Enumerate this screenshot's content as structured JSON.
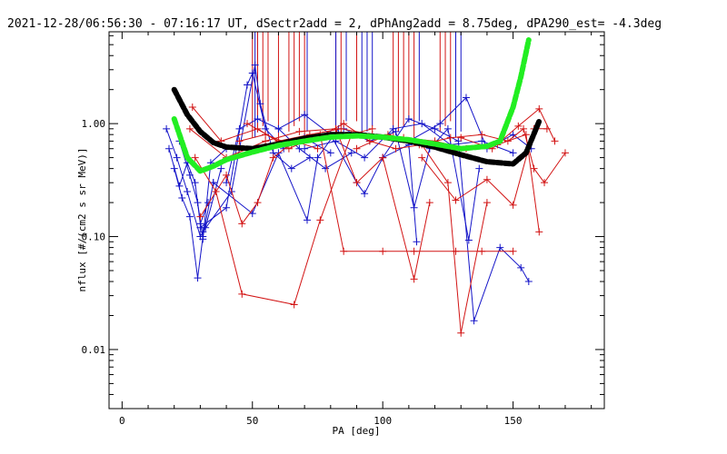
{
  "chart_data": {
    "type": "line",
    "title": "2021-12-28/06:56:30 - 07:16:17 UT, dSectr2add = 2, dPhAng2add = 8.75deg, dPA290_est=  -4.3deg",
    "xlabel": "PA [deg]",
    "ylabel": "nflux [#/(cm2 s sr MeV)]",
    "xlim": [
      -5,
      185
    ],
    "ylim": [
      0.003,
      6.5
    ],
    "yscale": "log",
    "x_ticks": [
      0,
      50,
      100,
      150
    ],
    "x_tick_labels": [
      "0",
      "50",
      "100",
      "150"
    ],
    "y_ticks": [
      0.01,
      0.1,
      1.0
    ],
    "y_tick_labels": [
      "0.01",
      "0.10",
      "1.00"
    ],
    "grid": false,
    "legend": "none",
    "colors": {
      "blue": "#1414c8",
      "red": "#d21414",
      "green": "#22ee22",
      "black": "#000000"
    },
    "series": [
      {
        "color": "blue",
        "x": [
          18,
          22,
          25,
          28,
          30,
          33
        ],
        "y": [
          0.6,
          0.28,
          0.45,
          0.3,
          0.13,
          0.2
        ]
      },
      {
        "color": "blue",
        "x": [
          20,
          23,
          26,
          29,
          31,
          35
        ],
        "y": [
          0.4,
          0.22,
          0.15,
          0.043,
          0.1,
          0.3
        ]
      },
      {
        "color": "blue",
        "x": [
          17,
          21,
          25,
          30,
          32,
          38
        ],
        "y": [
          0.9,
          0.5,
          0.25,
          0.1,
          0.12,
          0.4
        ]
      },
      {
        "color": "blue",
        "x": [
          22,
          26,
          29,
          31,
          34,
          40
        ],
        "y": [
          0.7,
          0.35,
          0.2,
          0.095,
          0.45,
          0.6
        ]
      },
      {
        "color": "blue",
        "x": [
          30,
          40,
          48,
          50,
          55,
          62,
          70,
          80
        ],
        "y": [
          0.12,
          0.18,
          2.2,
          2.8,
          0.9,
          0.6,
          0.75,
          0.55
        ]
      },
      {
        "color": "blue",
        "x": [
          31,
          42,
          51,
          53,
          58,
          65,
          72
        ],
        "y": [
          0.11,
          0.25,
          3.3,
          1.5,
          0.55,
          0.4,
          0.5
        ]
      },
      {
        "color": "blue",
        "x": [
          35,
          50,
          60,
          71,
          75,
          83
        ],
        "y": [
          0.3,
          0.16,
          0.55,
          0.14,
          0.5,
          0.9
        ]
      },
      {
        "color": "blue",
        "x": [
          40,
          45,
          52,
          60,
          68,
          78,
          88
        ],
        "y": [
          0.3,
          0.9,
          1.1,
          0.9,
          0.6,
          0.4,
          0.55
        ]
      },
      {
        "color": "blue",
        "x": [
          60,
          70,
          80,
          90,
          93,
          100,
          110,
          113
        ],
        "y": [
          0.9,
          1.2,
          0.8,
          0.3,
          0.24,
          0.5,
          0.65,
          0.09
        ]
      },
      {
        "color": "blue",
        "x": [
          85,
          95,
          105,
          112,
          118,
          125,
          133,
          137
        ],
        "y": [
          0.9,
          0.7,
          0.85,
          0.18,
          0.6,
          0.9,
          0.093,
          0.4
        ]
      },
      {
        "color": "blue",
        "x": [
          100,
          110,
          120,
          129,
          135,
          145,
          153,
          156
        ],
        "y": [
          0.5,
          1.1,
          0.9,
          0.7,
          0.018,
          0.08,
          0.053,
          0.04
        ]
      },
      {
        "color": "blue",
        "x": [
          110,
          122,
          132,
          140,
          150,
          157
        ],
        "y": [
          0.7,
          1.0,
          1.7,
          0.6,
          0.8,
          0.6
        ]
      },
      {
        "color": "blue",
        "x": [
          70,
          82,
          93,
          104,
          115,
          126,
          138,
          150
        ],
        "y": [
          0.6,
          0.7,
          0.5,
          0.9,
          1.0,
          0.65,
          0.7,
          0.55
        ]
      },
      {
        "color": "red",
        "x": [
          30,
          40,
          46,
          52,
          58,
          66,
          75
        ],
        "y": [
          0.15,
          0.35,
          0.13,
          0.2,
          0.5,
          0.7,
          0.6
        ]
      },
      {
        "color": "red",
        "x": [
          28,
          36,
          46,
          66,
          76,
          88,
          96
        ],
        "y": [
          0.5,
          0.25,
          0.031,
          0.025,
          0.14,
          0.8,
          0.9
        ]
      },
      {
        "color": "red",
        "x": [
          27,
          38,
          52,
          64,
          76,
          85,
          100,
          112,
          128,
          138,
          150
        ],
        "y": [
          1.4,
          0.7,
          0.9,
          0.6,
          0.8,
          0.074,
          0.074,
          0.074,
          0.074,
          0.074,
          0.074
        ]
      },
      {
        "color": "red",
        "x": [
          26,
          40,
          55,
          68,
          82,
          90,
          100,
          112,
          118
        ],
        "y": [
          0.9,
          0.5,
          0.7,
          0.85,
          0.9,
          0.3,
          0.5,
          0.042,
          0.2
        ]
      },
      {
        "color": "red",
        "x": [
          45,
          55,
          65,
          75,
          85,
          95,
          105,
          115,
          125,
          130,
          140
        ],
        "y": [
          0.7,
          0.8,
          0.65,
          0.75,
          1.0,
          0.7,
          0.6,
          0.65,
          0.3,
          0.014,
          0.2
        ]
      },
      {
        "color": "red",
        "x": [
          48,
          60,
          72,
          84,
          96,
          108,
          120,
          132,
          144,
          155,
          160
        ],
        "y": [
          1.0,
          0.7,
          0.8,
          0.9,
          0.8,
          0.75,
          0.7,
          0.6,
          0.65,
          0.8,
          0.11
        ]
      },
      {
        "color": "red",
        "x": [
          90,
          102,
          114,
          126,
          138,
          148,
          154,
          158,
          162,
          170
        ],
        "y": [
          0.6,
          0.8,
          0.65,
          0.75,
          0.8,
          0.7,
          0.9,
          0.4,
          0.3,
          0.55
        ]
      },
      {
        "color": "red",
        "x": [
          115,
          128,
          140,
          150,
          158,
          163
        ],
        "y": [
          0.5,
          0.21,
          0.32,
          0.19,
          0.9,
          0.9
        ]
      },
      {
        "color": "red",
        "x": [
          130,
          142,
          152,
          160,
          166
        ],
        "y": [
          0.75,
          0.6,
          0.95,
          1.35,
          0.7
        ]
      }
    ],
    "spikes": [
      {
        "color": "red",
        "x": [
          50,
          52,
          54,
          56,
          60,
          64,
          66,
          68,
          70,
          82,
          84,
          90,
          104,
          106,
          108,
          110,
          112,
          122,
          124,
          126,
          128
        ]
      },
      {
        "color": "blue",
        "x": [
          51,
          71,
          82,
          86,
          92,
          94,
          96,
          114,
          128,
          130
        ]
      }
    ],
    "fit_curves": [
      {
        "color": "black",
        "style": "dashed-thick",
        "x": [
          20,
          25,
          30,
          35,
          40,
          50,
          60,
          70,
          80,
          90,
          100,
          110,
          120,
          130,
          140,
          150,
          155,
          160
        ],
        "y": [
          2.0,
          1.2,
          0.85,
          0.68,
          0.62,
          0.6,
          0.66,
          0.74,
          0.8,
          0.8,
          0.76,
          0.7,
          0.62,
          0.53,
          0.46,
          0.44,
          0.55,
          1.05
        ]
      },
      {
        "color": "green",
        "style": "dashed-thick",
        "x": [
          20,
          25,
          30,
          35,
          40,
          50,
          60,
          70,
          80,
          90,
          100,
          110,
          120,
          130,
          140,
          145,
          150,
          153,
          156
        ],
        "y": [
          1.1,
          0.5,
          0.38,
          0.42,
          0.48,
          0.56,
          0.64,
          0.7,
          0.76,
          0.78,
          0.76,
          0.72,
          0.66,
          0.6,
          0.63,
          0.7,
          1.4,
          2.6,
          5.5
        ]
      }
    ]
  }
}
